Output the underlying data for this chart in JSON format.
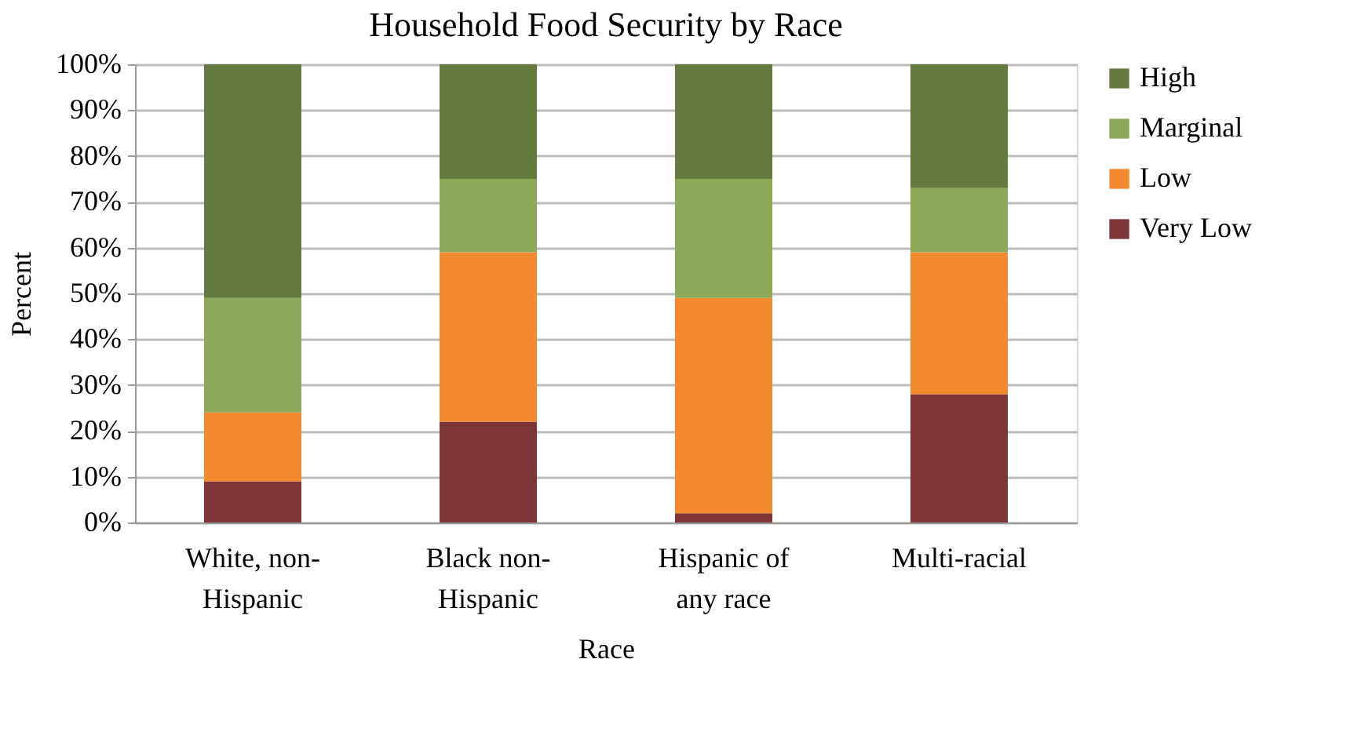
{
  "chart_data": {
    "type": "bar",
    "title": "Household Food Security by Race",
    "xlabel": "Race",
    "ylabel": "Percent",
    "categories": [
      "White, non-Hispanic",
      "Black non-Hispanic",
      "Hispanic of any race",
      "Multi-racial"
    ],
    "stacked": true,
    "series": [
      {
        "name": "Very Low",
        "color": "#7e3535",
        "values": [
          9,
          22,
          2,
          28
        ]
      },
      {
        "name": "Low",
        "color": "#f38a2e",
        "values": [
          15,
          37,
          47,
          31
        ]
      },
      {
        "name": "Marginal",
        "color": "#8ea85a",
        "values": [
          25,
          16,
          26,
          14
        ]
      },
      {
        "name": "High",
        "color": "#647a3e",
        "values": [
          51,
          25,
          25,
          27
        ]
      }
    ],
    "ylim": [
      0,
      100
    ],
    "yticks": [
      {
        "value": 0,
        "label": "0%"
      },
      {
        "value": 10,
        "label": "10%"
      },
      {
        "value": 20,
        "label": "20%"
      },
      {
        "value": 30,
        "label": "30%"
      },
      {
        "value": 40,
        "label": "40%"
      },
      {
        "value": 50,
        "label": "50%"
      },
      {
        "value": 60,
        "label": "60%"
      },
      {
        "value": 70,
        "label": "70%"
      },
      {
        "value": 80,
        "label": "80%"
      },
      {
        "value": 90,
        "label": "90%"
      },
      {
        "value": 100,
        "label": "100%"
      }
    ],
    "grid": "y",
    "legend": "right"
  }
}
